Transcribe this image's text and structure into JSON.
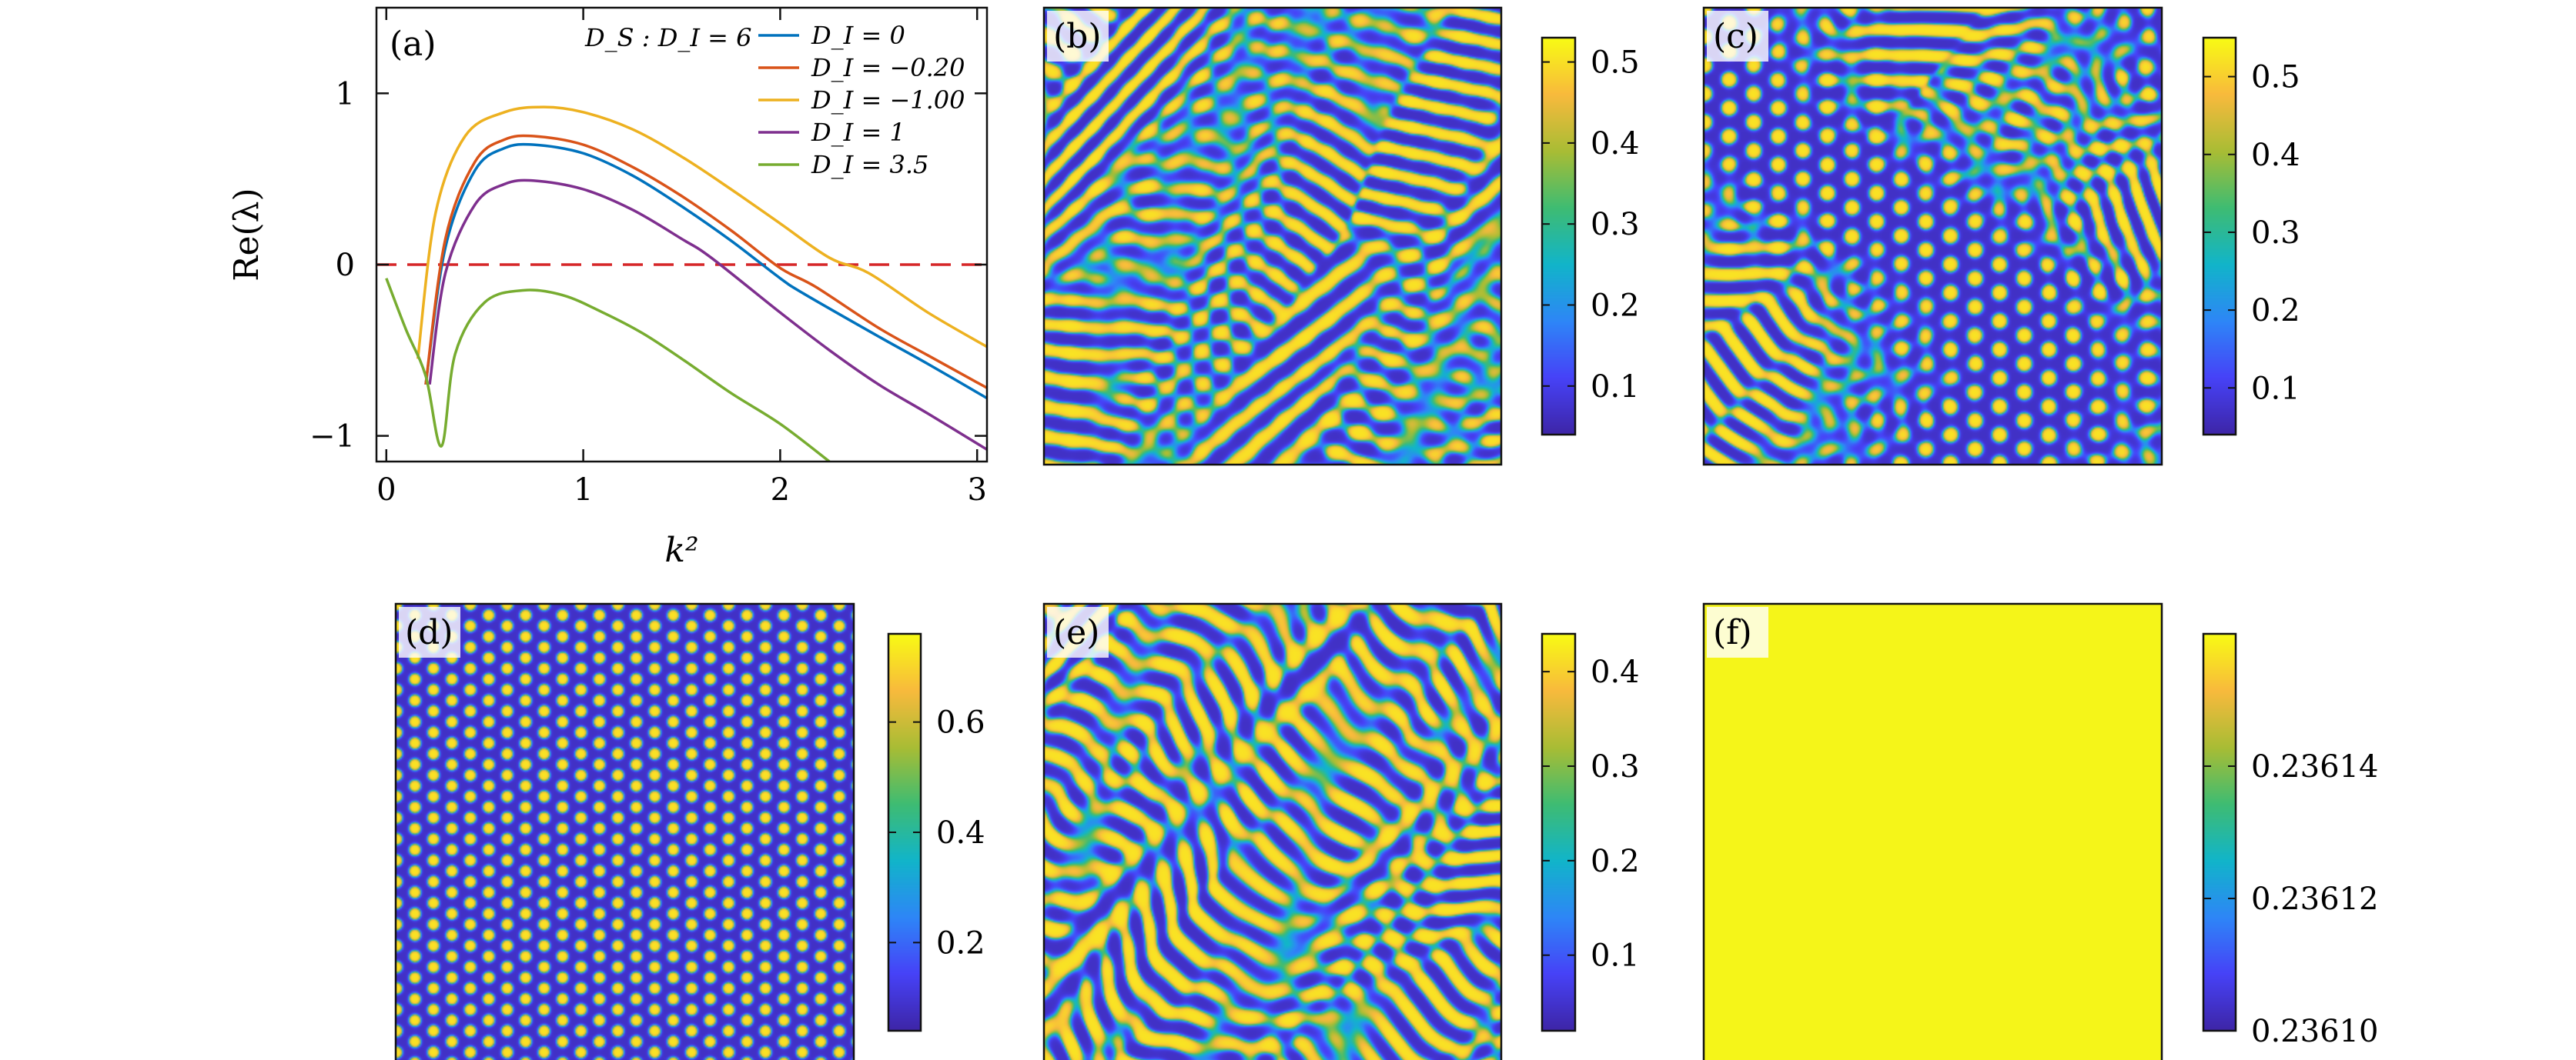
{
  "chart_data": [
    {
      "panel": "(a)",
      "type": "line",
      "title": "",
      "xlabel": "k²",
      "ylabel": "Re(λ)",
      "xlim": [
        -0.05,
        3.05
      ],
      "ylim": [
        -1.15,
        1.5
      ],
      "xticks": [
        0,
        1,
        2,
        3
      ],
      "yticks": [
        -1,
        0,
        1
      ],
      "grid": false,
      "legend_placement": "top-right",
      "legend_title": "D_S : D_I = 6",
      "reference_line": {
        "y": 0,
        "color": "#d62728",
        "style": "dashed"
      },
      "series": [
        {
          "name": "D_I = 0",
          "color": "#0072bd",
          "x": [
            0.2,
            0.3,
            0.45,
            0.6,
            0.75,
            1.0,
            1.25,
            1.5,
            1.75,
            2.0,
            2.12,
            2.5,
            2.75,
            3.05
          ],
          "y": [
            -0.7,
            0.1,
            0.55,
            0.68,
            0.7,
            0.65,
            0.52,
            0.34,
            0.14,
            -0.08,
            -0.17,
            -0.42,
            -0.58,
            -0.78
          ]
        },
        {
          "name": "D_I = −0.20",
          "color": "#d95319",
          "x": [
            0.2,
            0.3,
            0.45,
            0.6,
            0.75,
            1.0,
            1.25,
            1.5,
            1.75,
            2.0,
            2.18,
            2.5,
            2.75,
            3.05
          ],
          "y": [
            -0.7,
            0.15,
            0.6,
            0.73,
            0.75,
            0.7,
            0.57,
            0.4,
            0.2,
            -0.02,
            -0.13,
            -0.37,
            -0.53,
            -0.72
          ]
        },
        {
          "name": "D_I = −1.00",
          "color": "#edb120",
          "x": [
            0.16,
            0.25,
            0.4,
            0.6,
            0.8,
            1.0,
            1.25,
            1.5,
            1.75,
            2.0,
            2.25,
            2.45,
            2.75,
            3.05
          ],
          "y": [
            -0.55,
            0.3,
            0.75,
            0.89,
            0.92,
            0.89,
            0.79,
            0.63,
            0.44,
            0.24,
            0.04,
            -0.05,
            -0.28,
            -0.48
          ]
        },
        {
          "name": "D_I = 1",
          "color": "#7e2f8e",
          "x": [
            0.22,
            0.3,
            0.45,
            0.6,
            0.75,
            1.0,
            1.25,
            1.5,
            1.65,
            2.0,
            2.25,
            2.5,
            2.75,
            3.05
          ],
          "y": [
            -0.7,
            -0.05,
            0.35,
            0.47,
            0.49,
            0.44,
            0.32,
            0.15,
            0.04,
            -0.28,
            -0.5,
            -0.7,
            -0.87,
            -1.08
          ]
        },
        {
          "name": "D_I = 3.5",
          "color": "#77ac30",
          "x": [
            0.0,
            0.1,
            0.2,
            0.28,
            0.35,
            0.5,
            0.7,
            0.9,
            1.1,
            1.3,
            1.5,
            1.75,
            2.0,
            2.25
          ],
          "y": [
            -0.08,
            -0.38,
            -0.65,
            -1.06,
            -0.52,
            -0.22,
            -0.15,
            -0.18,
            -0.28,
            -0.4,
            -0.55,
            -0.75,
            -0.93,
            -1.15
          ]
        }
      ]
    },
    {
      "panel": "(b)",
      "type": "heatmap",
      "pattern": "stripes",
      "seed": 11,
      "wavelength": 17,
      "spot_density": 0.15,
      "curl": 2.2,
      "colorbar": {
        "min": 0.04,
        "max": 0.53,
        "ticks": [
          0.1,
          0.2,
          0.3,
          0.4,
          0.5
        ]
      }
    },
    {
      "panel": "(c)",
      "type": "heatmap",
      "pattern": "mixed",
      "seed": 23,
      "wavelength": 16,
      "spot_density": 0.6,
      "curl": 1.6,
      "colorbar": {
        "min": 0.04,
        "max": 0.55,
        "ticks": [
          0.1,
          0.2,
          0.3,
          0.4,
          0.5
        ]
      }
    },
    {
      "panel": "(d)",
      "type": "heatmap",
      "pattern": "spots",
      "seed": 37,
      "wavelength": 12,
      "spot_density": 1.0,
      "curl": 1.0,
      "colorbar": {
        "min": 0.04,
        "max": 0.76,
        "ticks": [
          0.2,
          0.4,
          0.6
        ]
      }
    },
    {
      "panel": "(e)",
      "type": "heatmap",
      "pattern": "labyrinth",
      "seed": 41,
      "wavelength": 19,
      "spot_density": 0.0,
      "curl": 3.0,
      "colorbar": {
        "min": 0.02,
        "max": 0.44,
        "ticks": [
          0.1,
          0.2,
          0.3,
          0.4
        ]
      }
    },
    {
      "panel": "(f)",
      "type": "heatmap",
      "pattern": "uniform",
      "fill_color": "#f5f519",
      "colorbar": {
        "min": 0.2361,
        "max": 0.23616,
        "ticks": [
          0.2361,
          0.23612,
          0.23614
        ]
      }
    }
  ],
  "colormap": [
    "#3e26a8",
    "#4743f8",
    "#2e87f7",
    "#12b5ca",
    "#3fbc73",
    "#a9bd35",
    "#f8ba3d",
    "#f9fb15"
  ]
}
